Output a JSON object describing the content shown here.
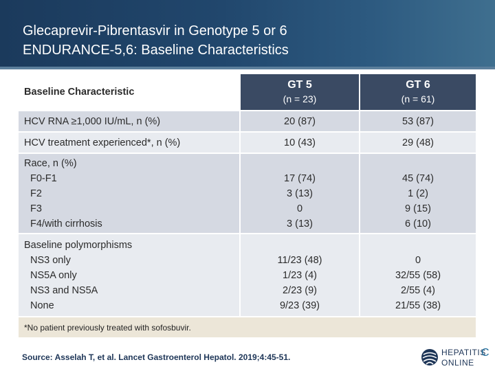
{
  "slide": {
    "title_line1": "Glecaprevir-Pibrentasvir in Genotype 5 or 6",
    "title_line2": "ENDURANCE-5,6: Baseline Characteristics"
  },
  "table": {
    "header": {
      "characteristic": "Baseline Characteristic",
      "gt5": {
        "title": "GT 5",
        "n": "(n = 23)"
      },
      "gt6": {
        "title": "GT 6",
        "n": "(n = 61)"
      }
    },
    "rows": [
      {
        "label": "HCV RNA ≥1,000 IU/mL, n (%)",
        "gt5": "20 (87)",
        "gt6": "53 (87)"
      },
      {
        "label": "HCV treatment experienced*, n (%)",
        "gt5": "10 (43)",
        "gt6": "29 (48)"
      }
    ],
    "race": {
      "label": "Race, n (%)",
      "items": [
        {
          "label": "F0-F1",
          "gt5": "17 (74)",
          "gt6": "45 (74)"
        },
        {
          "label": "F2",
          "gt5": "3 (13)",
          "gt6": "1 (2)"
        },
        {
          "label": "F3",
          "gt5": "0",
          "gt6": "9 (15)"
        },
        {
          "label": "F4/with cirrhosis",
          "gt5": "3 (13)",
          "gt6": "6 (10)"
        }
      ]
    },
    "polymorphisms": {
      "label": "Baseline polymorphisms",
      "items": [
        {
          "label": "NS3 only",
          "gt5": "11/23 (48)",
          "gt6": "0"
        },
        {
          "label": "NS5A only",
          "gt5": "1/23 (4)",
          "gt6": "32/55 (58)"
        },
        {
          "label": "NS3 and NS5A",
          "gt5": "2/23 (9)",
          "gt6": "2/55 (4)"
        },
        {
          "label": "None",
          "gt5": "9/23 (39)",
          "gt6": "21/55 (38)"
        }
      ]
    },
    "footnote": "*No patient previously treated with sofosbuvir."
  },
  "source": "Source: Asselah T, et al.  Lancet Gastroenterol Hepatol. 2019;4:45-51.",
  "logo": {
    "line1": "HEPATITIS",
    "line2": "ONLINE",
    "letter": "C",
    "icon": "globe-logo-icon"
  },
  "colors": {
    "header_bg": "#21476d",
    "gt_header_bg": "#3a4a63",
    "row_dark": "#d5d9e2",
    "row_light": "#e8ebf0",
    "footnote_bg": "#ece6d8"
  }
}
